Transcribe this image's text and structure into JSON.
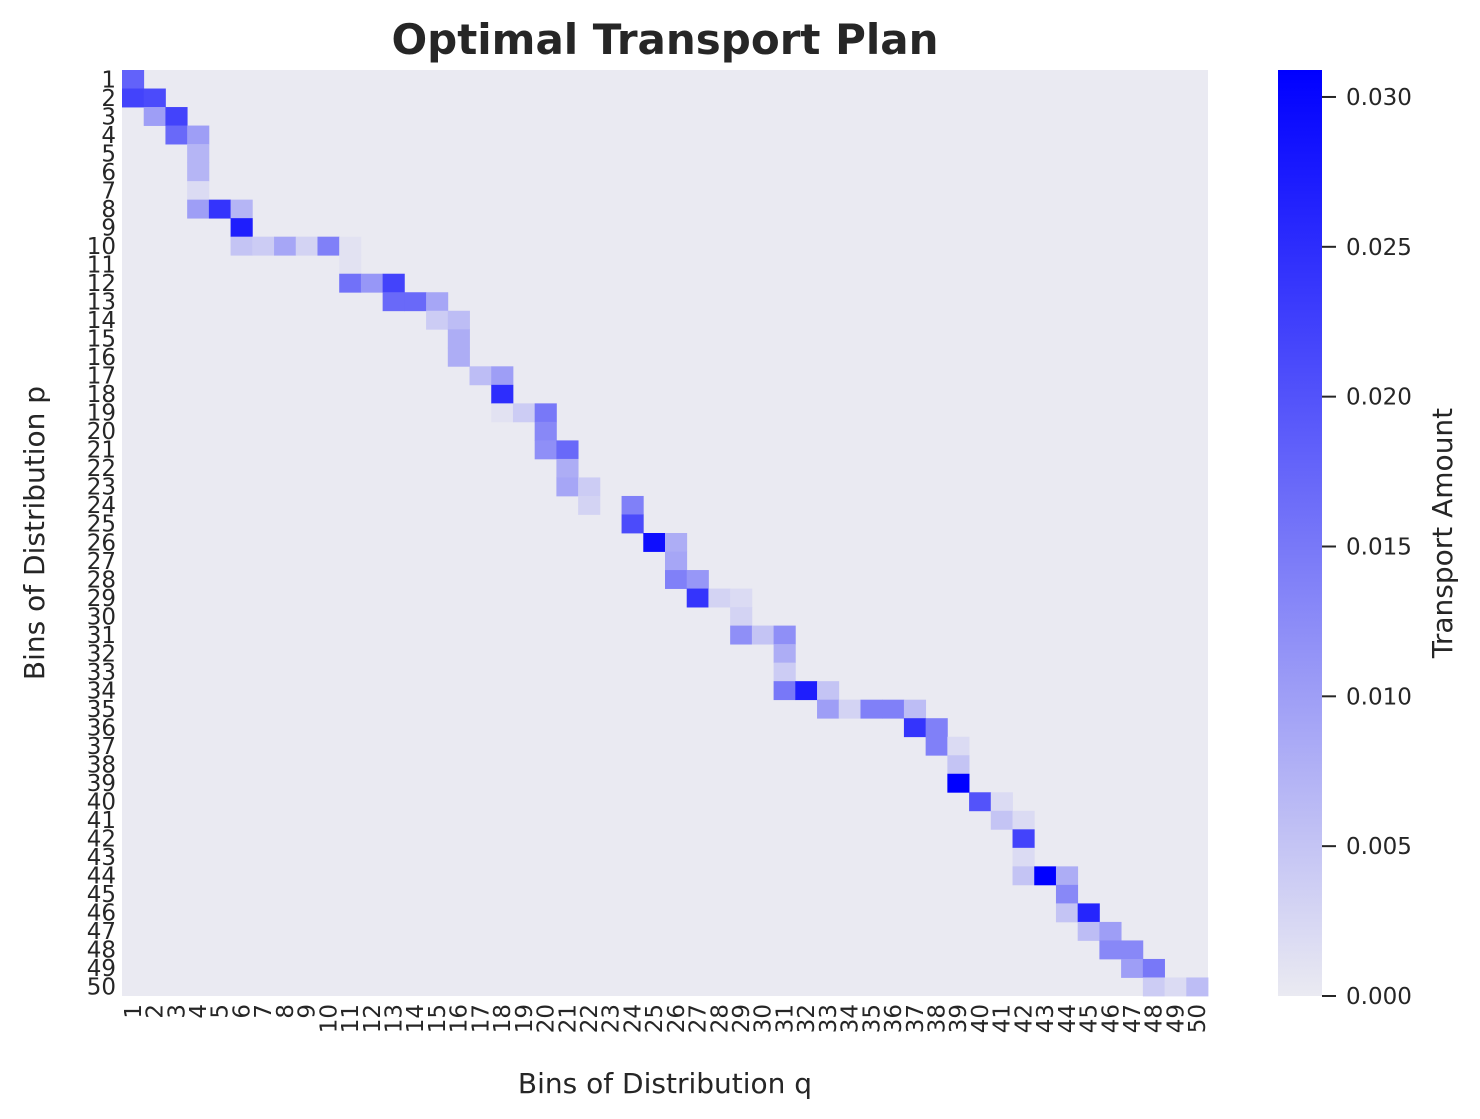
{
  "chart_data": {
    "type": "heatmap",
    "title": "Optimal Transport Plan",
    "xlabel": "Bins of Distribution q",
    "ylabel": "Bins of Distribution p",
    "x_categories": [
      "1",
      "2",
      "3",
      "4",
      "5",
      "6",
      "7",
      "8",
      "9",
      "10",
      "11",
      "12",
      "13",
      "14",
      "15",
      "16",
      "17",
      "18",
      "19",
      "20",
      "21",
      "22",
      "23",
      "24",
      "25",
      "26",
      "27",
      "28",
      "29",
      "30",
      "31",
      "32",
      "33",
      "34",
      "35",
      "36",
      "37",
      "38",
      "39",
      "40",
      "41",
      "42",
      "43",
      "44",
      "45",
      "46",
      "47",
      "48",
      "49",
      "50"
    ],
    "y_categories": [
      "1",
      "2",
      "3",
      "4",
      "5",
      "6",
      "7",
      "8",
      "9",
      "10",
      "11",
      "12",
      "13",
      "14",
      "15",
      "16",
      "17",
      "18",
      "19",
      "20",
      "21",
      "22",
      "23",
      "24",
      "25",
      "26",
      "27",
      "28",
      "29",
      "30",
      "31",
      "32",
      "33",
      "34",
      "35",
      "36",
      "37",
      "38",
      "39",
      "40",
      "41",
      "42",
      "43",
      "44",
      "45",
      "46",
      "47",
      "48",
      "49",
      "50"
    ],
    "colorbar": {
      "label": "Transport Amount",
      "min": 0.0,
      "max": 0.0309,
      "ticks": [
        "0.000",
        "0.005",
        "0.010",
        "0.015",
        "0.020",
        "0.025",
        "0.030"
      ],
      "color_low": "#eaeaf2",
      "color_high": "#0000ff"
    },
    "background_color": "#eaeaf2",
    "cells": [
      [
        1,
        1,
        0.018
      ],
      [
        2,
        1,
        0.022
      ],
      [
        2,
        2,
        0.021
      ],
      [
        3,
        2,
        0.01
      ],
      [
        3,
        3,
        0.022
      ],
      [
        4,
        3,
        0.017
      ],
      [
        4,
        4,
        0.01
      ],
      [
        5,
        4,
        0.007
      ],
      [
        6,
        4,
        0.007
      ],
      [
        7,
        4,
        0.002
      ],
      [
        8,
        4,
        0.01
      ],
      [
        8,
        5,
        0.024
      ],
      [
        8,
        6,
        0.007
      ],
      [
        9,
        6,
        0.027
      ],
      [
        10,
        6,
        0.005
      ],
      [
        10,
        7,
        0.004
      ],
      [
        10,
        8,
        0.009
      ],
      [
        10,
        9,
        0.003
      ],
      [
        10,
        10,
        0.014
      ],
      [
        10,
        11,
        0.001
      ],
      [
        11,
        11,
        0.001
      ],
      [
        12,
        11,
        0.016
      ],
      [
        12,
        12,
        0.011
      ],
      [
        12,
        13,
        0.022
      ],
      [
        13,
        13,
        0.017
      ],
      [
        13,
        14,
        0.017
      ],
      [
        13,
        15,
        0.009
      ],
      [
        14,
        15,
        0.004
      ],
      [
        14,
        16,
        0.006
      ],
      [
        15,
        16,
        0.008
      ],
      [
        16,
        16,
        0.008
      ],
      [
        17,
        17,
        0.006
      ],
      [
        17,
        18,
        0.01
      ],
      [
        18,
        18,
        0.025
      ],
      [
        19,
        18,
        0.001
      ],
      [
        19,
        19,
        0.004
      ],
      [
        19,
        20,
        0.015
      ],
      [
        20,
        20,
        0.013
      ],
      [
        21,
        20,
        0.012
      ],
      [
        21,
        21,
        0.017
      ],
      [
        22,
        21,
        0.008
      ],
      [
        23,
        21,
        0.009
      ],
      [
        23,
        22,
        0.004
      ],
      [
        24,
        22,
        0.003
      ],
      [
        24,
        24,
        0.014
      ],
      [
        25,
        24,
        0.021
      ],
      [
        26,
        25,
        0.029
      ],
      [
        26,
        26,
        0.008
      ],
      [
        27,
        26,
        0.009
      ],
      [
        28,
        26,
        0.014
      ],
      [
        28,
        27,
        0.011
      ],
      [
        29,
        27,
        0.024
      ],
      [
        29,
        28,
        0.003
      ],
      [
        29,
        29,
        0.002
      ],
      [
        30,
        29,
        0.003
      ],
      [
        31,
        29,
        0.012
      ],
      [
        31,
        30,
        0.005
      ],
      [
        31,
        31,
        0.012
      ],
      [
        32,
        31,
        0.008
      ],
      [
        33,
        31,
        0.004
      ],
      [
        34,
        31,
        0.015
      ],
      [
        34,
        32,
        0.027
      ],
      [
        34,
        33,
        0.005
      ],
      [
        35,
        33,
        0.01
      ],
      [
        35,
        34,
        0.003
      ],
      [
        35,
        35,
        0.014
      ],
      [
        35,
        36,
        0.014
      ],
      [
        35,
        37,
        0.006
      ],
      [
        36,
        37,
        0.024
      ],
      [
        36,
        38,
        0.014
      ],
      [
        37,
        38,
        0.014
      ],
      [
        37,
        39,
        0.002
      ],
      [
        38,
        39,
        0.005
      ],
      [
        39,
        39,
        0.031
      ],
      [
        40,
        40,
        0.02
      ],
      [
        40,
        41,
        0.002
      ],
      [
        41,
        41,
        0.005
      ],
      [
        41,
        42,
        0.002
      ],
      [
        42,
        42,
        0.022
      ],
      [
        43,
        42,
        0.002
      ],
      [
        44,
        42,
        0.005
      ],
      [
        44,
        43,
        0.031
      ],
      [
        44,
        44,
        0.008
      ],
      [
        45,
        44,
        0.013
      ],
      [
        46,
        44,
        0.005
      ],
      [
        46,
        45,
        0.026
      ],
      [
        47,
        45,
        0.006
      ],
      [
        47,
        46,
        0.01
      ],
      [
        48,
        46,
        0.013
      ],
      [
        48,
        47,
        0.013
      ],
      [
        49,
        47,
        0.01
      ],
      [
        49,
        48,
        0.015
      ],
      [
        50,
        48,
        0.004
      ],
      [
        50,
        49,
        0.002
      ],
      [
        50,
        50,
        0.006
      ]
    ]
  }
}
